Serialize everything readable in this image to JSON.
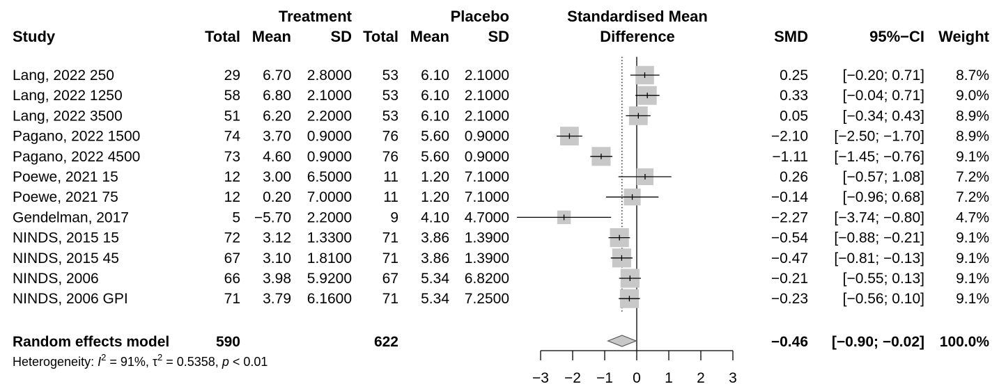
{
  "chart_data": {
    "type": "forest",
    "headers": {
      "treatment_group": "Treatment",
      "placebo_group": "Placebo",
      "plot_title_line1": "Standardised Mean",
      "plot_title_line2": "Difference",
      "study": "Study",
      "total_t": "Total",
      "mean_t": "Mean",
      "sd_t": "SD",
      "total_p": "Total",
      "mean_p": "Mean",
      "sd_p": "SD",
      "smd": "SMD",
      "ci": "95%−CI",
      "weight": "Weight"
    },
    "studies": [
      {
        "study": "Lang, 2022 250",
        "total_t": "29",
        "mean_t": "6.70",
        "sd_t": "2.8000",
        "total_p": "53",
        "mean_p": "6.10",
        "sd_p": "2.1000",
        "smd_text": "0.25",
        "ci_text": "[−0.20;  0.71]",
        "weight_text": "8.7%",
        "smd": 0.25,
        "lo": -0.2,
        "hi": 0.71,
        "weight": 8.7
      },
      {
        "study": "Lang, 2022 1250",
        "total_t": "58",
        "mean_t": "6.80",
        "sd_t": "2.1000",
        "total_p": "53",
        "mean_p": "6.10",
        "sd_p": "2.1000",
        "smd_text": "0.33",
        "ci_text": "[−0.04;  0.71]",
        "weight_text": "9.0%",
        "smd": 0.33,
        "lo": -0.04,
        "hi": 0.71,
        "weight": 9.0
      },
      {
        "study": "Lang, 2022  3500",
        "total_t": "51",
        "mean_t": "6.20",
        "sd_t": "2.2000",
        "total_p": "53",
        "mean_p": "6.10",
        "sd_p": "2.1000",
        "smd_text": "0.05",
        "ci_text": "[−0.34;  0.43]",
        "weight_text": "8.9%",
        "smd": 0.05,
        "lo": -0.34,
        "hi": 0.43,
        "weight": 8.9
      },
      {
        "study": "Pagano, 2022 1500",
        "total_t": "74",
        "mean_t": "3.70",
        "sd_t": "0.9000",
        "total_p": "76",
        "mean_p": "5.60",
        "sd_p": "0.9000",
        "smd_text": "−2.10",
        "ci_text": "[−2.50; −1.70]",
        "weight_text": "8.9%",
        "smd": -2.1,
        "lo": -2.5,
        "hi": -1.7,
        "weight": 8.9
      },
      {
        "study": "Pagano, 2022 4500",
        "total_t": "73",
        "mean_t": "4.60",
        "sd_t": "0.9000",
        "total_p": "76",
        "mean_p": "5.60",
        "sd_p": "0.9000",
        "smd_text": "−1.11",
        "ci_text": "[−1.45; −0.76]",
        "weight_text": "9.1%",
        "smd": -1.11,
        "lo": -1.45,
        "hi": -0.76,
        "weight": 9.1
      },
      {
        "study": "Poewe, 2021 15",
        "total_t": "12",
        "mean_t": "3.00",
        "sd_t": "6.5000",
        "total_p": "11",
        "mean_p": "1.20",
        "sd_p": "7.1000",
        "smd_text": "0.26",
        "ci_text": "[−0.57;  1.08]",
        "weight_text": "7.2%",
        "smd": 0.26,
        "lo": -0.57,
        "hi": 1.08,
        "weight": 7.2
      },
      {
        "study": "Poewe, 2021 75",
        "total_t": "12",
        "mean_t": "0.20",
        "sd_t": "7.0000",
        "total_p": "11",
        "mean_p": "1.20",
        "sd_p": "7.1000",
        "smd_text": "−0.14",
        "ci_text": "[−0.96;  0.68]",
        "weight_text": "7.2%",
        "smd": -0.14,
        "lo": -0.96,
        "hi": 0.68,
        "weight": 7.2
      },
      {
        "study": "Gendelman, 2017",
        "total_t": "5",
        "mean_t": "−5.70",
        "sd_t": "2.2000",
        "total_p": "9",
        "mean_p": "4.10",
        "sd_p": "4.7000",
        "smd_text": "−2.27",
        "ci_text": "[−3.74; −0.80]",
        "weight_text": "4.7%",
        "smd": -2.27,
        "lo": -3.74,
        "hi": -0.8,
        "weight": 4.7
      },
      {
        "study": "NINDS, 2015 15",
        "total_t": "72",
        "mean_t": "3.12",
        "sd_t": "1.3300",
        "total_p": "71",
        "mean_p": "3.86",
        "sd_p": "1.3900",
        "smd_text": "−0.54",
        "ci_text": "[−0.88; −0.21]",
        "weight_text": "9.1%",
        "smd": -0.54,
        "lo": -0.88,
        "hi": -0.21,
        "weight": 9.1
      },
      {
        "study": "NINDS, 2015 45",
        "total_t": "67",
        "mean_t": "3.10",
        "sd_t": "1.8100",
        "total_p": "71",
        "mean_p": "3.86",
        "sd_p": "1.3900",
        "smd_text": "−0.47",
        "ci_text": "[−0.81; −0.13]",
        "weight_text": "9.1%",
        "smd": -0.47,
        "lo": -0.81,
        "hi": -0.13,
        "weight": 9.1
      },
      {
        "study": "NINDS, 2006",
        "total_t": "66",
        "mean_t": "3.98",
        "sd_t": "5.9200",
        "total_p": "67",
        "mean_p": "5.34",
        "sd_p": "6.8200",
        "smd_text": "−0.21",
        "ci_text": "[−0.55;  0.13]",
        "weight_text": "9.1%",
        "smd": -0.21,
        "lo": -0.55,
        "hi": 0.13,
        "weight": 9.1
      },
      {
        "study": "NINDS, 2006 GPI",
        "total_t": "71",
        "mean_t": "3.79",
        "sd_t": "6.1600",
        "total_p": "71",
        "mean_p": "5.34",
        "sd_p": "7.2500",
        "smd_text": "−0.23",
        "ci_text": "[−0.56;  0.10]",
        "weight_text": "9.1%",
        "smd": -0.23,
        "lo": -0.56,
        "hi": 0.1,
        "weight": 9.1
      }
    ],
    "summary": {
      "label": "Random effects model",
      "total_t": "590",
      "total_p": "622",
      "smd_text": "−0.46",
      "ci_text": "[−0.90; −0.02]",
      "weight_text": "100.0%",
      "smd": -0.46,
      "lo": -0.9,
      "hi": -0.02
    },
    "heterogeneity": {
      "prefix": "Heterogeneity: ",
      "i2_symbol": "I",
      "i2_sup": "2",
      "i2_value": " = 91%, ",
      "tau2_symbol": "τ",
      "tau2_sup": "2",
      "tau2_value": " = 0.5358, ",
      "p_symbol": "p",
      "p_value": " < 0.01"
    },
    "x_axis": {
      "range": [
        -3,
        3
      ],
      "ticks": [
        -3,
        -2,
        -1,
        0,
        1,
        2,
        3
      ],
      "tick_labels": [
        "−3",
        "−2",
        "−1",
        "0",
        "1",
        "2",
        "3"
      ]
    },
    "reference_line": 0,
    "summary_line": -0.46,
    "colors": {
      "square": "#c8c8c8",
      "diamond": "#c8c8c8",
      "line": "#000000"
    }
  }
}
